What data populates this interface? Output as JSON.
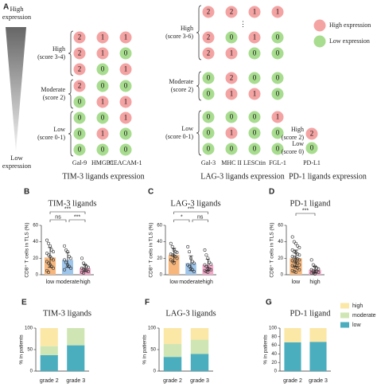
{
  "panel_a": {
    "label": "A",
    "gradient": {
      "top": "High expression",
      "bottom": "Low expression"
    },
    "legend": [
      {
        "label": "High expression",
        "color": "#f4a3a3"
      },
      {
        "label": "Low expression",
        "color": "#a8dc8f"
      }
    ],
    "groups": [
      {
        "title": "TIM-3 ligands expression",
        "columns": [
          "Gal-9",
          "HMGB1",
          "CEACAM-1"
        ],
        "sections": [
          {
            "label": [
              "High",
              "(score 3-4)"
            ],
            "rows": [
              [
                2,
                1,
                1
              ],
              [
                2,
                1,
                0
              ],
              [
                2,
                0,
                1
              ]
            ]
          },
          {
            "label": [
              "Moderate",
              "(score 2)"
            ],
            "rows": [
              [
                2,
                0,
                0
              ],
              [
                0,
                1,
                1
              ]
            ]
          },
          {
            "label": [
              "Low",
              "(score 0-1)"
            ],
            "rows": [
              [
                0,
                0,
                1
              ],
              [
                0,
                1,
                0
              ],
              [
                0,
                0,
                0
              ]
            ]
          }
        ]
      },
      {
        "title": "LAG-3 ligands expression",
        "columns": [
          "Gal-3",
          "MHC II",
          "LESCtin",
          "FGL-1"
        ],
        "sections": [
          {
            "label": [
              "High",
              "(score 3-6)"
            ],
            "rows": [
              [
                2,
                2,
                1,
                1
              ],
              "⋮",
              [
                2,
                0,
                1,
                0
              ],
              [
                2,
                1,
                0,
                0
              ]
            ]
          },
          {
            "label": [
              "Moderate",
              "(score 2)"
            ],
            "rows": [
              [
                0,
                2,
                0,
                0
              ],
              [
                0,
                1,
                1,
                0
              ]
            ]
          },
          {
            "label": [
              "Low",
              "(score 0-1)"
            ],
            "rows": [
              [
                0,
                0,
                0,
                1
              ],
              [
                0,
                1,
                0,
                0
              ],
              [
                0,
                0,
                0,
                0
              ]
            ]
          }
        ]
      },
      {
        "title": "PD-1 ligands expression",
        "columns": [
          "PD-L1"
        ],
        "sections": [
          {
            "label": [
              "High",
              "(score 2)"
            ],
            "rows": [
              [
                2
              ]
            ]
          },
          {
            "label": [
              "Low",
              "(score 0)"
            ],
            "rows": [
              [
                0
              ]
            ]
          }
        ]
      }
    ]
  },
  "chart_data": [
    {
      "type": "bar_scatter",
      "panel": "B",
      "title": "TIM-3 ligands",
      "ylabel": "CD8⁺ T cells in TLS (%)",
      "categories": [
        "low",
        "moderate",
        "high"
      ],
      "values": [
        21,
        18,
        8
      ],
      "errors": [
        12,
        9,
        4
      ],
      "colors": [
        "#f7b77c",
        "#9ec5ea",
        "#f4a7c8"
      ],
      "points": [
        [
          42,
          38,
          35,
          30,
          28,
          26,
          24,
          22,
          20,
          18,
          16,
          14,
          12,
          10,
          8,
          5,
          3
        ],
        [
          35,
          30,
          28,
          22,
          20,
          18,
          15,
          12,
          10,
          8,
          6
        ],
        [
          20,
          14,
          12,
          10,
          9,
          8,
          7,
          6,
          5,
          4,
          3,
          2
        ]
      ],
      "significance": [
        "***",
        "ns",
        "***"
      ],
      "ylim": [
        0,
        60
      ],
      "yticks": [
        0,
        20,
        40,
        60
      ]
    },
    {
      "type": "bar_scatter",
      "panel": "C",
      "title": "LAG-3 ligands",
      "ylabel": "CD8⁺ T cells in TLS (%)",
      "categories": [
        "low",
        "moderate",
        "high"
      ],
      "values": [
        24,
        14,
        12
      ],
      "errors": [
        8,
        9,
        7
      ],
      "colors": [
        "#f7b77c",
        "#9ec5ea",
        "#f4a7c8"
      ],
      "points": [
        [
          38,
          34,
          30,
          28,
          27,
          25,
          24,
          23,
          22,
          20,
          18,
          16,
          14
        ],
        [
          34,
          28,
          20,
          16,
          14,
          12,
          10,
          8,
          6,
          4
        ],
        [
          30,
          24,
          20,
          15,
          13,
          12,
          10,
          8,
          7,
          6,
          5,
          4,
          3
        ]
      ],
      "significance": [
        "***",
        "*",
        "ns"
      ],
      "ylim": [
        0,
        60
      ],
      "yticks": [
        0,
        20,
        40,
        60
      ]
    },
    {
      "type": "bar_scatter",
      "panel": "D",
      "title": "PD-1 ligand",
      "ylabel": "CD8⁺ T cells in TLS (%)",
      "categories": [
        "low",
        "high"
      ],
      "values": [
        20,
        6
      ],
      "errors": [
        10,
        4
      ],
      "colors": [
        "#f7b77c",
        "#f4a7c8"
      ],
      "points": [
        [
          46,
          40,
          38,
          35,
          33,
          30,
          28,
          27,
          25,
          24,
          22,
          21,
          20,
          19,
          18,
          17,
          16,
          15,
          14,
          12,
          11,
          10,
          9,
          8,
          6,
          5,
          4,
          3
        ],
        [
          18,
          12,
          10,
          8,
          7,
          6,
          5,
          4,
          4,
          3,
          2,
          2,
          1
        ]
      ],
      "significance": [
        "***"
      ],
      "ylim": [
        0,
        60
      ],
      "yticks": [
        0,
        20,
        40,
        60
      ]
    },
    {
      "type": "stacked_bar",
      "panel": "E",
      "title": "TIM-3 ligands",
      "ylabel": "% in patients",
      "categories": [
        "grade 2",
        "grade 3"
      ],
      "series": [
        {
          "name": "low",
          "color": "#4aaebf",
          "values": [
            37,
            60
          ]
        },
        {
          "name": "moderate",
          "color": "#cfe6b4",
          "values": [
            21,
            40
          ]
        },
        {
          "name": "high",
          "color": "#fbe7a6",
          "values": [
            42,
            0
          ]
        }
      ],
      "ylim": [
        0,
        100
      ],
      "yticks": [
        0,
        50,
        100
      ]
    },
    {
      "type": "stacked_bar",
      "panel": "F",
      "title": "LAG-3 ligands",
      "ylabel": "% in patients",
      "categories": [
        "grade 2",
        "grade 3"
      ],
      "series": [
        {
          "name": "low",
          "color": "#4aaebf",
          "values": [
            33,
            40
          ]
        },
        {
          "name": "moderate",
          "color": "#cfe6b4",
          "values": [
            30,
            33
          ]
        },
        {
          "name": "high",
          "color": "#fbe7a6",
          "values": [
            37,
            27
          ]
        }
      ],
      "ylim": [
        0,
        100
      ],
      "yticks": [
        0,
        50,
        100
      ]
    },
    {
      "type": "stacked_bar",
      "panel": "G",
      "title": "PD-1 ligand",
      "ylabel": "% in patients",
      "categories": [
        "grade 2",
        "grade 3"
      ],
      "series": [
        {
          "name": "low",
          "color": "#4aaebf",
          "values": [
            67,
            68
          ]
        },
        {
          "name": "moderate",
          "color": "#cfe6b4",
          "values": [
            0,
            0
          ]
        },
        {
          "name": "high",
          "color": "#fbe7a6",
          "values": [
            33,
            32
          ]
        }
      ],
      "ylim": [
        0,
        100
      ],
      "yticks": [
        0,
        20,
        40,
        60,
        80,
        100
      ],
      "legend": true
    }
  ]
}
